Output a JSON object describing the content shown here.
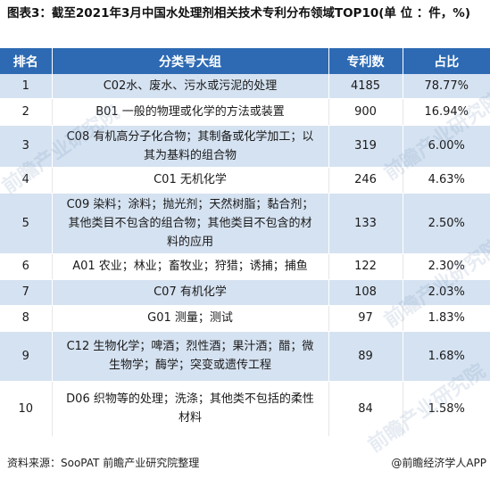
{
  "title": "图表3：截至2021年3月中国水处理剂相关技术专利分布领域TOP10(单 位 ：件，%)",
  "table": {
    "headers": [
      "排名",
      "分类号大组",
      "专利数",
      "占比"
    ],
    "rows": [
      {
        "rank": "1",
        "category": "C02水、废水、污水或污泥的处理",
        "count": "4185",
        "share": "78.77%"
      },
      {
        "rank": "2",
        "category": "B01 一般的物理或化学的方法或装置",
        "count": "900",
        "share": "16.94%"
      },
      {
        "rank": "3",
        "category": "C08 有机高分子化合物；其制备或化学加工；以其为基料的组合物",
        "count": "319",
        "share": "6.00%"
      },
      {
        "rank": "4",
        "category": "C01 无机化学",
        "count": "246",
        "share": "4.63%"
      },
      {
        "rank": "5",
        "category": "C09 染料；涂料；抛光剂；天然树脂；黏合剂；其他类目不包含的组合物；其他类目不包含的材料的应用",
        "count": "133",
        "share": "2.50%"
      },
      {
        "rank": "6",
        "category": "A01 农业；林业；畜牧业；狩猎；诱捕；捕鱼",
        "count": "122",
        "share": "2.30%"
      },
      {
        "rank": "7",
        "category": "C07 有机化学",
        "count": "108",
        "share": "2.03%"
      },
      {
        "rank": "8",
        "category": "G01 测量；测试",
        "count": "97",
        "share": "1.83%"
      },
      {
        "rank": "9",
        "category": "C12 生物化学；啤酒；烈性酒；果汁酒；醋；微生物学；酶学；突变或遗传工程",
        "count": "89",
        "share": "1.68%"
      },
      {
        "rank": "10",
        "category": "D06 织物等的处理；洗涤；其他类不包括的柔性材料",
        "count": "84",
        "share": "1.58%"
      }
    ]
  },
  "footer": {
    "source": "资料来源：SooPAT 前瞻产业研究院整理",
    "brand": "@前瞻经济学人APP"
  },
  "watermark": "前瞻产业研究院",
  "colors": {
    "header_bg": "#2d6ab3",
    "odd_row_bg": "#d5e2f1",
    "even_row_bg": "#ffffff"
  }
}
